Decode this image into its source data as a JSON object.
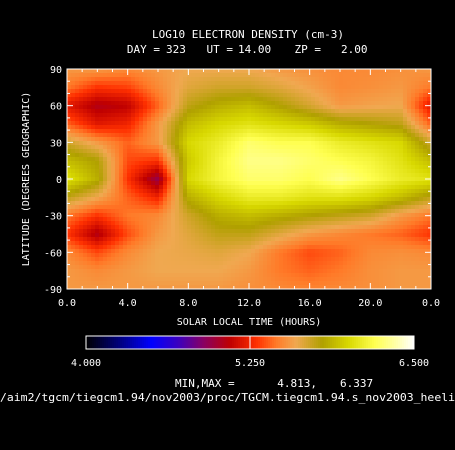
{
  "chart_data": {
    "type": "heatmap",
    "title": "LOG10 ELECTRON DENSITY (cm-3)",
    "subtitle": {
      "day_label": "DAY =",
      "day": "323",
      "ut_label": "UT =",
      "ut": "14.00",
      "zp_label": "ZP =",
      "zp": "2.00"
    },
    "xlabel": "SOLAR LOCAL TIME (HOURS)",
    "ylabel": "LATITUDE (DEGREES GEOGRAPHIC)",
    "xlim": [
      0,
      24
    ],
    "ylim": [
      -90,
      90
    ],
    "x_ticks": [
      "0.0",
      "4.0",
      "8.0",
      "12.0",
      "16.0",
      "20.0",
      "0.0"
    ],
    "y_ticks": [
      "90",
      "60",
      "30",
      "0",
      "-30",
      "-60",
      "-90"
    ],
    "x": [
      0,
      2,
      4,
      6,
      8,
      10,
      12,
      14,
      16,
      18,
      20,
      22,
      24
    ],
    "y": [
      90,
      75,
      60,
      45,
      30,
      15,
      0,
      -15,
      -30,
      -45,
      -60,
      -75,
      -90
    ],
    "z": [
      [
        5.55,
        5.55,
        5.5,
        5.55,
        5.6,
        5.6,
        5.6,
        5.55,
        5.52,
        5.5,
        5.5,
        5.52,
        5.55
      ],
      [
        5.45,
        5.3,
        5.33,
        5.5,
        5.65,
        5.7,
        5.7,
        5.65,
        5.58,
        5.5,
        5.52,
        5.55,
        5.45
      ],
      [
        5.2,
        5.05,
        5.1,
        5.4,
        5.75,
        5.85,
        5.9,
        5.8,
        5.68,
        5.55,
        5.58,
        5.6,
        5.2
      ],
      [
        5.4,
        5.2,
        5.25,
        5.55,
        5.9,
        6.0,
        6.05,
        6.0,
        5.95,
        5.85,
        5.8,
        5.75,
        5.4
      ],
      [
        5.7,
        5.55,
        5.4,
        5.55,
        6.0,
        6.1,
        6.25,
        6.2,
        6.2,
        6.1,
        6.05,
        6.0,
        5.7
      ],
      [
        5.9,
        5.8,
        5.35,
        5.3,
        5.95,
        6.15,
        6.3,
        6.3,
        6.25,
        6.2,
        6.15,
        6.05,
        5.9
      ],
      [
        6.05,
        5.85,
        5.3,
        4.95,
        6.0,
        6.15,
        6.25,
        6.25,
        6.2,
        6.3,
        6.2,
        6.1,
        6.05
      ],
      [
        5.75,
        5.6,
        5.4,
        5.25,
        5.85,
        6.0,
        6.1,
        6.1,
        6.05,
        6.05,
        6.0,
        5.9,
        5.75
      ],
      [
        5.45,
        5.3,
        5.45,
        5.5,
        5.7,
        5.85,
        5.9,
        5.85,
        5.8,
        5.75,
        5.7,
        5.55,
        5.45
      ],
      [
        5.3,
        5.05,
        5.35,
        5.55,
        5.65,
        5.75,
        5.75,
        5.65,
        5.55,
        5.5,
        5.45,
        5.4,
        5.3
      ],
      [
        5.5,
        5.35,
        5.5,
        5.6,
        5.62,
        5.65,
        5.6,
        5.45,
        5.35,
        5.4,
        5.5,
        5.52,
        5.5
      ],
      [
        5.55,
        5.5,
        5.55,
        5.6,
        5.6,
        5.6,
        5.55,
        5.45,
        5.4,
        5.45,
        5.52,
        5.55,
        5.55
      ],
      [
        5.55,
        5.55,
        5.55,
        5.55,
        5.55,
        5.55,
        5.52,
        5.5,
        5.48,
        5.5,
        5.52,
        5.55,
        5.55
      ]
    ],
    "colorbar": {
      "min_label": "4.000",
      "mid_label": "5.250",
      "max_label": "6.500",
      "range": [
        4.0,
        6.5
      ],
      "stops": [
        [
          0.0,
          "#000000"
        ],
        [
          0.1,
          "#00007a"
        ],
        [
          0.2,
          "#0000ff"
        ],
        [
          0.28,
          "#3a00c0"
        ],
        [
          0.36,
          "#8a0060"
        ],
        [
          0.44,
          "#c00000"
        ],
        [
          0.52,
          "#ff3000"
        ],
        [
          0.58,
          "#ff7a28"
        ],
        [
          0.64,
          "#f0a850"
        ],
        [
          0.72,
          "#b0a000"
        ],
        [
          0.8,
          "#d8d800"
        ],
        [
          0.88,
          "#ffff50"
        ],
        [
          0.95,
          "#ffffb0"
        ],
        [
          1.0,
          "#ffffff"
        ]
      ]
    },
    "minmax": {
      "label": "MIN,MAX =",
      "min": "4.813,",
      "max": "6.337"
    },
    "source_path": "/aim2/tgcm/tiegcm1.94/nov2003/proc/TGCM.tiegcm1.94.s_nov2003_heeli"
  }
}
